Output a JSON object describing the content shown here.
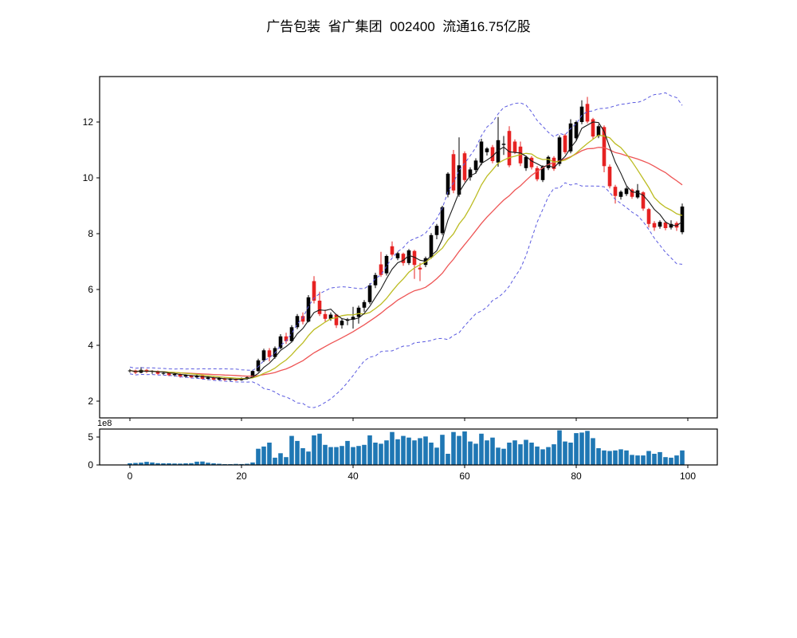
{
  "title": "广告包装  省广集团  002400  流通16.75亿股",
  "chart_data": {
    "type": "candlestick",
    "title": "广告包装  省广集团  002400  流通16.75亿股",
    "x_axis": {
      "ticks": [
        0,
        20,
        40,
        60,
        80,
        100
      ],
      "xlim": [
        -5.4,
        105.3
      ]
    },
    "price_axis": {
      "ticks": [
        2,
        4,
        6,
        8,
        10,
        12
      ],
      "ylim": [
        1.4,
        13.66
      ]
    },
    "volume_axis": {
      "ticks": [
        0,
        5
      ],
      "offset_label": "1e8",
      "ylim_1e8": [
        0,
        6.4
      ]
    },
    "legend_position": "none",
    "grid": false,
    "overlays": {
      "ma_fast": {
        "window": 5,
        "color": "#1a1a1a",
        "style": "solid"
      },
      "ma_mid": {
        "window": 10,
        "color": "#bcbc22",
        "style": "solid"
      },
      "ma_slow": {
        "window": 20,
        "color": "#ee5555",
        "style": "solid"
      },
      "bollinger": {
        "window": 20,
        "num_std": 2,
        "color": "#5a5ae0",
        "style": "dashed"
      }
    },
    "colors": {
      "up": "#000000",
      "down": "#e62222",
      "volume": "#1f77b4",
      "frame": "#000000"
    },
    "ohlc": [
      [
        3.08,
        3.15,
        3.02,
        3.1
      ],
      [
        3.1,
        3.13,
        2.97,
        3.02
      ],
      [
        3.02,
        3.22,
        3.0,
        3.12
      ],
      [
        3.12,
        3.15,
        3.01,
        3.05
      ],
      [
        3.05,
        3.11,
        2.98,
        3.08
      ],
      [
        3.08,
        3.1,
        2.94,
        2.98
      ],
      [
        2.98,
        3.06,
        2.93,
        3.01
      ],
      [
        3.01,
        3.03,
        2.89,
        2.93
      ],
      [
        2.93,
        3.01,
        2.88,
        2.97
      ],
      [
        2.97,
        2.99,
        2.84,
        2.88
      ],
      [
        2.88,
        2.96,
        2.83,
        2.93
      ],
      [
        2.93,
        2.94,
        2.81,
        2.85
      ],
      [
        2.85,
        2.96,
        2.8,
        2.91
      ],
      [
        2.91,
        2.93,
        2.77,
        2.8
      ],
      [
        2.8,
        2.89,
        2.75,
        2.85
      ],
      [
        2.85,
        2.87,
        2.74,
        2.77
      ],
      [
        2.77,
        2.86,
        2.73,
        2.82
      ],
      [
        2.82,
        2.84,
        2.73,
        2.76
      ],
      [
        2.76,
        2.84,
        2.72,
        2.8
      ],
      [
        2.8,
        2.82,
        2.72,
        2.75
      ],
      [
        2.75,
        2.85,
        2.73,
        2.82
      ],
      [
        2.82,
        2.89,
        2.77,
        2.86
      ],
      [
        2.86,
        3.12,
        2.84,
        3.08
      ],
      [
        3.08,
        3.52,
        3.04,
        3.46
      ],
      [
        3.46,
        3.88,
        3.4,
        3.82
      ],
      [
        3.82,
        3.9,
        3.42,
        3.58
      ],
      [
        3.58,
        3.96,
        3.52,
        3.9
      ],
      [
        3.9,
        4.4,
        3.86,
        4.32
      ],
      [
        4.32,
        4.45,
        4.05,
        4.15
      ],
      [
        4.15,
        4.72,
        4.1,
        4.65
      ],
      [
        4.65,
        5.12,
        4.58,
        5.05
      ],
      [
        5.05,
        5.18,
        4.75,
        4.85
      ],
      [
        4.85,
        5.8,
        4.82,
        5.72
      ],
      [
        6.3,
        6.48,
        5.5,
        5.6
      ],
      [
        5.6,
        5.92,
        5.05,
        5.12
      ],
      [
        5.12,
        5.28,
        4.85,
        4.95
      ],
      [
        4.95,
        5.18,
        4.88,
        5.1
      ],
      [
        5.1,
        5.12,
        4.62,
        4.72
      ],
      [
        4.72,
        4.95,
        4.6,
        4.88
      ],
      [
        4.88,
        4.98,
        4.72,
        4.92
      ],
      [
        4.92,
        5.38,
        4.6,
        5.02
      ],
      [
        5.02,
        5.42,
        4.78,
        5.35
      ],
      [
        5.35,
        5.62,
        5.2,
        5.55
      ],
      [
        5.55,
        6.22,
        5.48,
        6.15
      ],
      [
        6.15,
        6.6,
        6.05,
        6.52
      ],
      [
        6.9,
        7.35,
        6.45,
        6.52
      ],
      [
        6.58,
        7.25,
        6.5,
        7.2
      ],
      [
        7.55,
        7.72,
        7.18,
        7.25
      ],
      [
        7.12,
        7.35,
        7.05,
        7.3
      ],
      [
        7.28,
        7.32,
        6.85,
        6.95
      ],
      [
        6.95,
        7.45,
        6.88,
        7.4
      ],
      [
        7.38,
        7.42,
        6.38,
        6.88
      ],
      [
        6.78,
        6.95,
        6.3,
        6.72
      ],
      [
        6.88,
        7.18,
        6.8,
        7.12
      ],
      [
        7.15,
        8.02,
        7.1,
        7.95
      ],
      [
        7.95,
        8.35,
        7.8,
        8.28
      ],
      [
        8.02,
        9.0,
        7.95,
        8.95
      ],
      [
        9.4,
        10.2,
        9.3,
        10.15
      ],
      [
        10.85,
        11.0,
        9.45,
        9.55
      ],
      [
        9.4,
        11.45,
        9.32,
        10.45
      ],
      [
        10.88,
        10.95,
        9.85,
        9.92
      ],
      [
        10.02,
        10.38,
        9.9,
        10.3
      ],
      [
        10.28,
        10.7,
        10.15,
        10.62
      ],
      [
        10.55,
        11.4,
        10.45,
        11.3
      ],
      [
        10.92,
        11.1,
        10.8,
        11.05
      ],
      [
        11.1,
        11.18,
        10.52,
        10.6
      ],
      [
        10.55,
        12.18,
        10.4,
        11.35
      ],
      [
        11.18,
        11.5,
        10.82,
        11.22
      ],
      [
        11.68,
        11.85,
        10.38,
        10.45
      ],
      [
        11.3,
        11.38,
        10.85,
        10.92
      ],
      [
        11.12,
        11.3,
        10.42,
        10.52
      ],
      [
        10.35,
        10.8,
        10.25,
        10.75
      ],
      [
        10.72,
        10.78,
        10.3,
        10.38
      ],
      [
        10.35,
        10.42,
        9.88,
        9.95
      ],
      [
        9.92,
        10.45,
        9.85,
        10.4
      ],
      [
        10.35,
        10.8,
        10.28,
        10.75
      ],
      [
        10.72,
        10.78,
        10.25,
        10.32
      ],
      [
        10.5,
        11.52,
        10.42,
        11.45
      ],
      [
        11.52,
        11.58,
        10.85,
        10.92
      ],
      [
        10.95,
        12.1,
        10.88,
        11.95
      ],
      [
        11.42,
        12.05,
        11.35,
        12.0
      ],
      [
        12.0,
        12.78,
        11.92,
        12.55
      ],
      [
        12.65,
        12.9,
        11.95,
        12.02
      ],
      [
        12.1,
        12.15,
        11.4,
        11.48
      ],
      [
        11.5,
        11.92,
        11.42,
        11.85
      ],
      [
        11.82,
        11.88,
        10.2,
        10.42
      ],
      [
        10.4,
        10.48,
        9.62,
        9.7
      ],
      [
        9.68,
        9.75,
        9.08,
        9.35
      ],
      [
        9.32,
        9.55,
        9.22,
        9.5
      ],
      [
        9.42,
        9.68,
        9.35,
        9.62
      ],
      [
        9.58,
        9.62,
        9.25,
        9.32
      ],
      [
        9.3,
        9.78,
        9.25,
        9.55
      ],
      [
        9.48,
        9.52,
        8.82,
        8.9
      ],
      [
        8.88,
        8.92,
        8.22,
        8.35
      ],
      [
        8.38,
        8.45,
        8.1,
        8.22
      ],
      [
        8.25,
        8.48,
        8.18,
        8.42
      ],
      [
        8.4,
        8.45,
        8.12,
        8.2
      ],
      [
        8.22,
        8.48,
        8.15,
        8.35
      ],
      [
        8.38,
        8.44,
        8.1,
        8.22
      ],
      [
        8.05,
        9.08,
        7.98,
        8.97
      ]
    ],
    "volume_1e8": [
      0.3,
      0.35,
      0.42,
      0.55,
      0.45,
      0.32,
      0.28,
      0.3,
      0.26,
      0.24,
      0.28,
      0.32,
      0.58,
      0.62,
      0.4,
      0.28,
      0.22,
      0.15,
      0.14,
      0.18,
      0.16,
      0.22,
      0.45,
      2.9,
      3.3,
      4.0,
      1.3,
      2.1,
      1.4,
      5.2,
      4.3,
      3.0,
      2.4,
      5.3,
      5.6,
      3.6,
      3.2,
      3.2,
      3.4,
      4.3,
      3.2,
      3.4,
      3.6,
      5.3,
      4.0,
      3.8,
      4.4,
      5.9,
      4.6,
      5.2,
      4.9,
      4.4,
      4.8,
      5.1,
      4.0,
      3.1,
      5.4,
      2.0,
      5.9,
      5.2,
      6.0,
      4.2,
      3.8,
      5.6,
      4.4,
      4.9,
      3.1,
      2.9,
      4.0,
      4.4,
      3.7,
      4.5,
      4.0,
      3.3,
      2.8,
      3.2,
      3.7,
      6.2,
      4.2,
      4.0,
      5.7,
      5.8,
      6.1,
      4.8,
      3.0,
      2.6,
      2.5,
      2.6,
      2.8,
      2.6,
      1.8,
      1.7,
      1.7,
      2.5,
      2.0,
      2.3,
      1.4,
      1.3,
      1.7,
      2.6
    ]
  }
}
